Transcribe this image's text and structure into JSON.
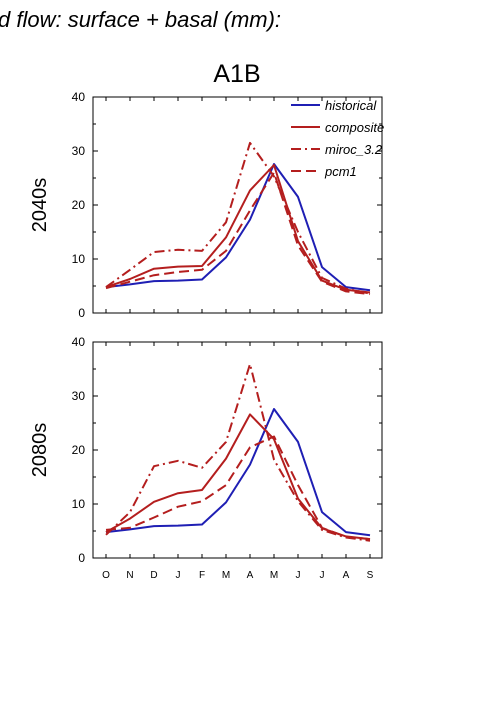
{
  "figure": {
    "title": "d flow: surface + basal (mm):",
    "subtitle": "A1B"
  },
  "colors": {
    "historical": "#1f1fb4",
    "scenarios": "#b41e1e"
  },
  "chart_data": [
    {
      "type": "line",
      "panel_label": "2040s",
      "categories": [
        "O",
        "N",
        "D",
        "J",
        "F",
        "M",
        "A",
        "M",
        "J",
        "J",
        "A",
        "S"
      ],
      "ylim": [
        0,
        40
      ],
      "yticks": [
        0,
        10,
        20,
        30,
        40
      ],
      "legend_position": "top-right",
      "series": [
        {
          "name": "historical",
          "style": "solid",
          "color": "#1f1fb4",
          "values": [
            4.8,
            5.3,
            5.9,
            6.0,
            6.2,
            10.3,
            17.3,
            27.6,
            21.5,
            8.5,
            4.8,
            4.2
          ]
        },
        {
          "name": "composite",
          "style": "solid",
          "color": "#b41e1e",
          "values": [
            4.8,
            6.3,
            8.2,
            8.6,
            8.7,
            14.0,
            22.7,
            27.4,
            13.3,
            6.0,
            4.3,
            3.8
          ]
        },
        {
          "name": "miroc_3.2",
          "style": "dashdot",
          "color": "#b41e1e",
          "values": [
            4.8,
            8.0,
            11.3,
            11.7,
            11.5,
            16.8,
            31.5,
            25.3,
            15.0,
            6.5,
            4.5,
            3.6
          ]
        },
        {
          "name": "pcm1",
          "style": "dashed",
          "color": "#b41e1e",
          "values": [
            4.6,
            5.8,
            7.0,
            7.6,
            8.0,
            11.5,
            19.0,
            26.0,
            12.5,
            5.8,
            4.0,
            3.5
          ]
        }
      ]
    },
    {
      "type": "line",
      "panel_label": "2080s",
      "categories": [
        "O",
        "N",
        "D",
        "J",
        "F",
        "M",
        "A",
        "M",
        "J",
        "J",
        "A",
        "S"
      ],
      "ylim": [
        0,
        40
      ],
      "yticks": [
        0,
        10,
        20,
        30,
        40
      ],
      "series": [
        {
          "name": "historical",
          "style": "solid",
          "color": "#1f1fb4",
          "values": [
            4.8,
            5.3,
            5.9,
            6.0,
            6.2,
            10.3,
            17.3,
            27.6,
            21.5,
            8.5,
            4.8,
            4.2
          ]
        },
        {
          "name": "composite",
          "style": "solid",
          "color": "#b41e1e",
          "values": [
            4.8,
            7.3,
            10.4,
            12.0,
            12.6,
            18.4,
            26.6,
            22.0,
            11.0,
            5.5,
            4.0,
            3.5
          ]
        },
        {
          "name": "miroc_3.2",
          "style": "dashdot",
          "color": "#b41e1e",
          "values": [
            4.3,
            8.5,
            17.0,
            18.0,
            16.7,
            21.5,
            35.9,
            18.2,
            10.5,
            5.2,
            3.8,
            3.2
          ]
        },
        {
          "name": "pcm1",
          "style": "dashed",
          "color": "#b41e1e",
          "values": [
            5.2,
            5.6,
            7.5,
            9.5,
            10.5,
            13.5,
            20.5,
            22.5,
            13.5,
            5.6,
            3.9,
            3.5
          ]
        }
      ]
    }
  ]
}
